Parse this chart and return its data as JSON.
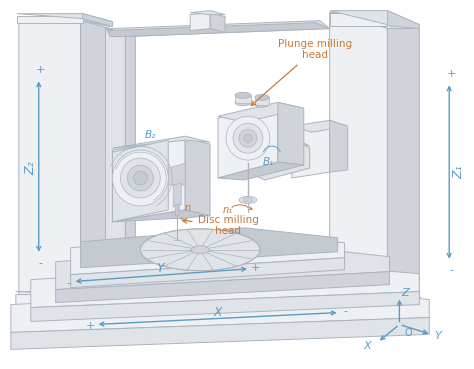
{
  "bg": "#ffffff",
  "lc": "#aab5c0",
  "fl": "#eef0f3",
  "fm": "#e0e3e8",
  "fd": "#d0d4da",
  "fdd": "#c5c9d0",
  "blue": "#5b9cc4",
  "orange": "#c8793a",
  "fig_w": 4.74,
  "fig_h": 3.69,
  "dpi": 100,
  "labels": {
    "plunge": "Plunge milling\nhead",
    "disc": "Disc milling\nhead",
    "B1": "B₁",
    "B2": "B₂",
    "n1": "n₁",
    "n": "n",
    "Z1": "Z₁",
    "Z2": "Z₂",
    "X": "X",
    "Y": "Y",
    "Z": "Z",
    "O": "O"
  }
}
